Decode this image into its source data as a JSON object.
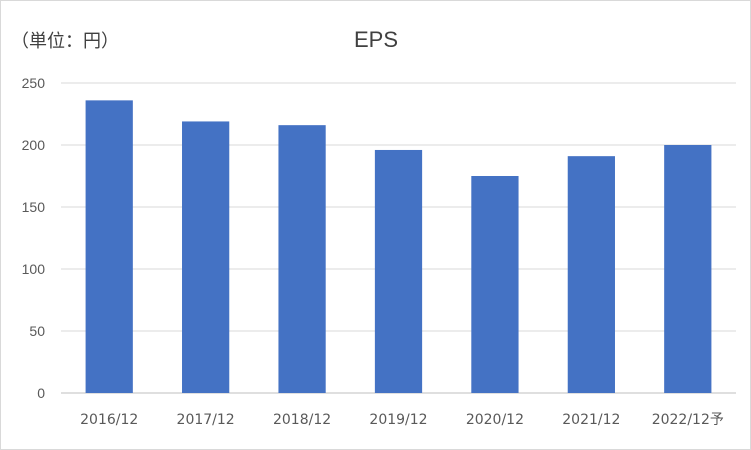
{
  "chart_data": {
    "type": "bar",
    "title": "EPS",
    "unit_label": "（単位：円）",
    "categories": [
      "2016/12",
      "2017/12",
      "2018/12",
      "2019/12",
      "2020/12",
      "2021/12",
      "2022/12予"
    ],
    "values": [
      236,
      219,
      216,
      196,
      175,
      191,
      200
    ],
    "ylim": [
      0,
      250
    ],
    "yticks": [
      0,
      50,
      100,
      150,
      200,
      250
    ],
    "grid": true,
    "bar_color": "#4472C4"
  }
}
